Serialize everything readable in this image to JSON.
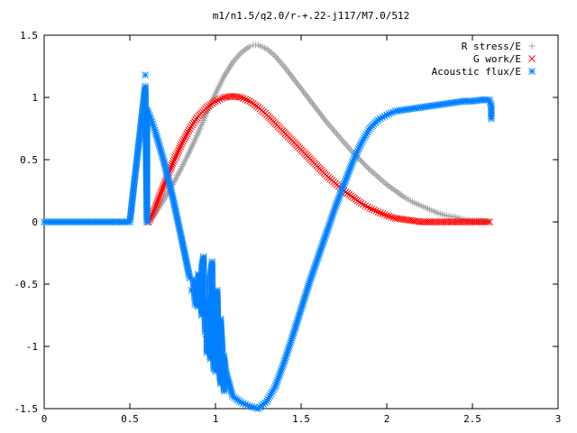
{
  "chart_data": {
    "type": "scatter",
    "title": "m1/n1.5/q2.0/r-+.22-j117/M7.0/512",
    "xlabel": "",
    "ylabel": "",
    "xlim": [
      0,
      3
    ],
    "ylim": [
      -1.5,
      1.5
    ],
    "x_ticks": [
      "0",
      "0.5",
      "1",
      "1.5",
      "2",
      "2.5",
      "3"
    ],
    "y_ticks": [
      "1.5",
      "1",
      "0.5",
      "0",
      "-0.5",
      "-1",
      "-1.5"
    ],
    "grid": false,
    "legend_position": "top-right",
    "series": [
      {
        "name": "R stress/E",
        "marker": "+",
        "color": "#a0a0a0",
        "points": [
          [
            0.61,
            0.0
          ],
          [
            0.65,
            0.07
          ],
          [
            0.7,
            0.18
          ],
          [
            0.75,
            0.3
          ],
          [
            0.8,
            0.43
          ],
          [
            0.85,
            0.57
          ],
          [
            0.9,
            0.72
          ],
          [
            0.95,
            0.88
          ],
          [
            1.0,
            1.03
          ],
          [
            1.05,
            1.17
          ],
          [
            1.1,
            1.28
          ],
          [
            1.15,
            1.36
          ],
          [
            1.2,
            1.41
          ],
          [
            1.22,
            1.42
          ],
          [
            1.25,
            1.42
          ],
          [
            1.3,
            1.39
          ],
          [
            1.35,
            1.33
          ],
          [
            1.4,
            1.25
          ],
          [
            1.45,
            1.16
          ],
          [
            1.5,
            1.07
          ],
          [
            1.55,
            0.98
          ],
          [
            1.6,
            0.89
          ],
          [
            1.65,
            0.8
          ],
          [
            1.7,
            0.72
          ],
          [
            1.75,
            0.64
          ],
          [
            1.8,
            0.56
          ],
          [
            1.85,
            0.49
          ],
          [
            1.9,
            0.42
          ],
          [
            1.95,
            0.36
          ],
          [
            2.0,
            0.3
          ],
          [
            2.05,
            0.25
          ],
          [
            2.1,
            0.2
          ],
          [
            2.15,
            0.16
          ],
          [
            2.2,
            0.13
          ],
          [
            2.25,
            0.1
          ],
          [
            2.3,
            0.07
          ],
          [
            2.35,
            0.05
          ],
          [
            2.4,
            0.04
          ],
          [
            2.45,
            0.02
          ],
          [
            2.5,
            0.01
          ],
          [
            2.55,
            0.01
          ],
          [
            2.6,
            0.0
          ]
        ]
      },
      {
        "name": "G work/E",
        "marker": "x",
        "color": "#ff0000",
        "points": [
          [
            0.61,
            0.0
          ],
          [
            0.65,
            0.12
          ],
          [
            0.7,
            0.3
          ],
          [
            0.75,
            0.47
          ],
          [
            0.8,
            0.62
          ],
          [
            0.85,
            0.75
          ],
          [
            0.9,
            0.85
          ],
          [
            0.95,
            0.92
          ],
          [
            1.0,
            0.97
          ],
          [
            1.05,
            1.0
          ],
          [
            1.1,
            1.01
          ],
          [
            1.15,
            1.0
          ],
          [
            1.2,
            0.97
          ],
          [
            1.25,
            0.92
          ],
          [
            1.3,
            0.86
          ],
          [
            1.35,
            0.79
          ],
          [
            1.4,
            0.72
          ],
          [
            1.45,
            0.65
          ],
          [
            1.5,
            0.58
          ],
          [
            1.55,
            0.51
          ],
          [
            1.6,
            0.44
          ],
          [
            1.65,
            0.37
          ],
          [
            1.7,
            0.31
          ],
          [
            1.75,
            0.25
          ],
          [
            1.8,
            0.2
          ],
          [
            1.85,
            0.15
          ],
          [
            1.9,
            0.11
          ],
          [
            1.95,
            0.08
          ],
          [
            2.0,
            0.05
          ],
          [
            2.05,
            0.03
          ],
          [
            2.1,
            0.02
          ],
          [
            2.15,
            0.01
          ],
          [
            2.2,
            0.0
          ],
          [
            2.3,
            0.0
          ],
          [
            2.4,
            0.0
          ],
          [
            2.5,
            0.0
          ],
          [
            2.6,
            0.0
          ]
        ]
      },
      {
        "name": "Acoustic flux/E",
        "marker": "*",
        "color": "#0080ff",
        "points": [
          [
            0.0,
            0.0
          ],
          [
            0.1,
            0.0
          ],
          [
            0.2,
            0.0
          ],
          [
            0.3,
            0.0
          ],
          [
            0.4,
            0.0
          ],
          [
            0.5,
            0.0
          ],
          [
            0.6,
            0.0
          ],
          [
            0.59,
            1.18
          ],
          [
            0.59,
            1.09
          ],
          [
            0.6,
            0.9
          ],
          [
            0.62,
            0.84
          ],
          [
            0.65,
            0.72
          ],
          [
            0.7,
            0.48
          ],
          [
            0.75,
            0.2
          ],
          [
            0.8,
            -0.12
          ],
          [
            0.85,
            -0.45
          ],
          [
            0.88,
            -0.62
          ],
          [
            0.9,
            -0.68
          ],
          [
            0.92,
            -0.75
          ],
          [
            0.95,
            -0.92
          ],
          [
            0.97,
            -1.1
          ],
          [
            1.0,
            -1.2
          ],
          [
            1.03,
            -1.3
          ],
          [
            1.05,
            -1.36
          ],
          [
            1.1,
            -1.4
          ],
          [
            1.15,
            -1.45
          ],
          [
            1.2,
            -1.48
          ],
          [
            1.25,
            -1.5
          ],
          [
            1.3,
            -1.44
          ],
          [
            1.35,
            -1.32
          ],
          [
            1.4,
            -1.13
          ],
          [
            1.45,
            -0.92
          ],
          [
            1.5,
            -0.7
          ],
          [
            1.55,
            -0.48
          ],
          [
            1.6,
            -0.28
          ],
          [
            1.65,
            -0.08
          ],
          [
            1.7,
            0.12
          ],
          [
            1.75,
            0.3
          ],
          [
            1.8,
            0.48
          ],
          [
            1.85,
            0.63
          ],
          [
            1.9,
            0.75
          ],
          [
            1.95,
            0.82
          ],
          [
            2.0,
            0.86
          ],
          [
            2.05,
            0.89
          ],
          [
            2.1,
            0.9
          ],
          [
            2.15,
            0.91
          ],
          [
            2.2,
            0.92
          ],
          [
            2.25,
            0.93
          ],
          [
            2.3,
            0.94
          ],
          [
            2.35,
            0.95
          ],
          [
            2.4,
            0.96
          ],
          [
            2.45,
            0.97
          ],
          [
            2.5,
            0.97
          ],
          [
            2.55,
            0.98
          ],
          [
            2.6,
            0.98
          ],
          [
            2.61,
            0.93
          ],
          [
            2.61,
            0.83
          ],
          [
            0.86,
            -0.55
          ],
          [
            0.87,
            -0.46
          ],
          [
            0.88,
            -0.66
          ],
          [
            0.9,
            -0.42
          ],
          [
            0.91,
            -0.5
          ],
          [
            0.92,
            -0.36
          ],
          [
            0.93,
            -0.28
          ],
          [
            0.94,
            -0.88
          ],
          [
            0.95,
            -1.05
          ],
          [
            0.96,
            -0.62
          ],
          [
            0.97,
            -0.45
          ],
          [
            0.98,
            -0.32
          ],
          [
            0.99,
            -1.18
          ],
          [
            1.0,
            -1.0
          ],
          [
            1.01,
            -0.55
          ],
          [
            1.02,
            -1.15
          ],
          [
            1.03,
            -0.78
          ],
          [
            1.04,
            -1.02
          ],
          [
            1.05,
            -1.08
          ],
          [
            1.06,
            -1.2
          ]
        ]
      }
    ]
  }
}
